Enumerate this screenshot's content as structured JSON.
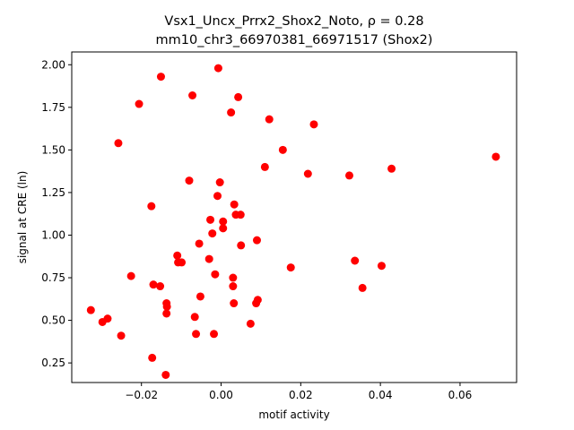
{
  "chart_data": {
    "type": "scatter",
    "title_line1": "Vsx1_Uncx_Prrx2_Shox2_Noto, ρ = 0.28",
    "title_line2": "mm10_chr3_66970381_66971517 (Shox2)",
    "xlabel": "motif activity",
    "ylabel": "signal at CRE (ln)",
    "xlim": [
      -0.0375,
      0.0742
    ],
    "ylim": [
      0.135,
      2.075
    ],
    "xticks": [
      -0.02,
      0.0,
      0.02,
      0.04,
      0.06
    ],
    "xtick_labels": [
      "−0.02",
      "0.00",
      "0.02",
      "0.04",
      "0.06"
    ],
    "yticks": [
      0.25,
      0.5,
      0.75,
      1.0,
      1.25,
      1.5,
      1.75,
      2.0
    ],
    "ytick_labels": [
      "0.25",
      "0.50",
      "0.75",
      "1.00",
      "1.25",
      "1.50",
      "1.75",
      "2.00"
    ],
    "grid": false,
    "marker_color": "#ff0000",
    "points": [
      {
        "x": -0.0151,
        "y": 1.93
      },
      {
        "x": -0.0007,
        "y": 1.98
      },
      {
        "x": -0.0206,
        "y": 1.77
      },
      {
        "x": -0.0072,
        "y": 1.82
      },
      {
        "x": 0.0043,
        "y": 1.81
      },
      {
        "x": 0.0025,
        "y": 1.72
      },
      {
        "x": 0.0121,
        "y": 1.68
      },
      {
        "x": 0.0233,
        "y": 1.65
      },
      {
        "x": -0.0258,
        "y": 1.54
      },
      {
        "x": 0.0155,
        "y": 1.5
      },
      {
        "x": 0.011,
        "y": 1.4
      },
      {
        "x": 0.0218,
        "y": 1.36
      },
      {
        "x": 0.0322,
        "y": 1.35
      },
      {
        "x": 0.0428,
        "y": 1.39
      },
      {
        "x": 0.069,
        "y": 1.46
      },
      {
        "x": -0.008,
        "y": 1.32
      },
      {
        "x": -0.0003,
        "y": 1.31
      },
      {
        "x": -0.0009,
        "y": 1.23
      },
      {
        "x": -0.0175,
        "y": 1.17
      },
      {
        "x": 0.0033,
        "y": 1.18
      },
      {
        "x": -0.0027,
        "y": 1.09
      },
      {
        "x": 0.0037,
        "y": 1.12
      },
      {
        "x": 0.0049,
        "y": 1.12
      },
      {
        "x": 0.0005,
        "y": 1.08
      },
      {
        "x": 0.0005,
        "y": 1.04
      },
      {
        "x": -0.0022,
        "y": 1.01
      },
      {
        "x": -0.0055,
        "y": 0.95
      },
      {
        "x": 0.005,
        "y": 0.94
      },
      {
        "x": 0.009,
        "y": 0.97
      },
      {
        "x": -0.011,
        "y": 0.88
      },
      {
        "x": -0.0108,
        "y": 0.84
      },
      {
        "x": -0.0099,
        "y": 0.84
      },
      {
        "x": -0.003,
        "y": 0.86
      },
      {
        "x": 0.0336,
        "y": 0.85
      },
      {
        "x": 0.0403,
        "y": 0.82
      },
      {
        "x": 0.0175,
        "y": 0.81
      },
      {
        "x": -0.0226,
        "y": 0.76
      },
      {
        "x": -0.0015,
        "y": 0.77
      },
      {
        "x": 0.003,
        "y": 0.75
      },
      {
        "x": -0.017,
        "y": 0.71
      },
      {
        "x": -0.0153,
        "y": 0.7
      },
      {
        "x": 0.003,
        "y": 0.7
      },
      {
        "x": 0.0355,
        "y": 0.69
      },
      {
        "x": -0.0052,
        "y": 0.64
      },
      {
        "x": 0.0092,
        "y": 0.62
      },
      {
        "x": 0.0088,
        "y": 0.6
      },
      {
        "x": 0.0032,
        "y": 0.6
      },
      {
        "x": -0.0137,
        "y": 0.6
      },
      {
        "x": -0.0136,
        "y": 0.58
      },
      {
        "x": -0.0137,
        "y": 0.54
      },
      {
        "x": -0.0066,
        "y": 0.52
      },
      {
        "x": -0.0327,
        "y": 0.56
      },
      {
        "x": -0.0285,
        "y": 0.51
      },
      {
        "x": -0.0298,
        "y": 0.49
      },
      {
        "x": 0.0074,
        "y": 0.48
      },
      {
        "x": -0.0251,
        "y": 0.41
      },
      {
        "x": -0.0063,
        "y": 0.42
      },
      {
        "x": -0.0018,
        "y": 0.42
      },
      {
        "x": -0.0173,
        "y": 0.28
      },
      {
        "x": -0.0139,
        "y": 0.18
      }
    ]
  }
}
